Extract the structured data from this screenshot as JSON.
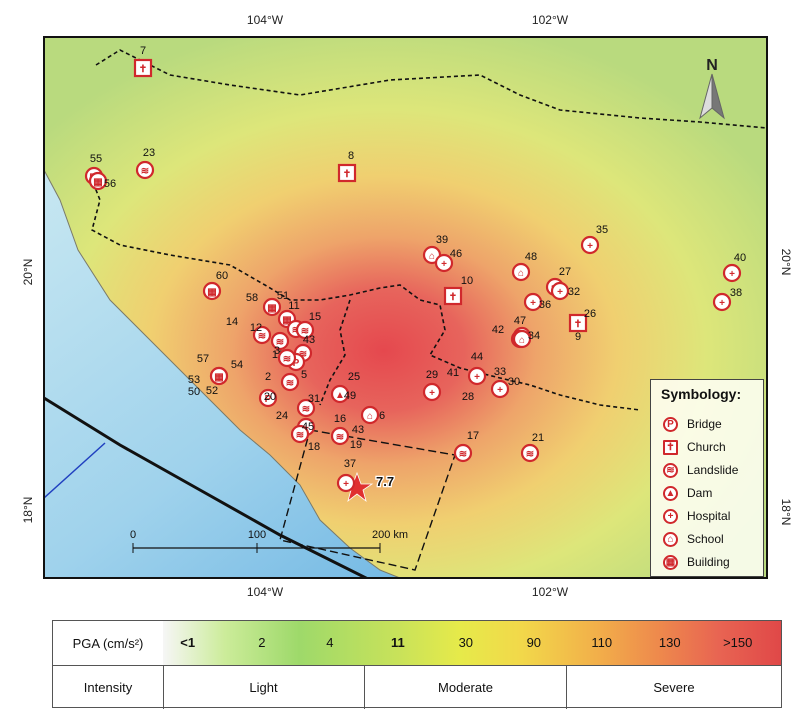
{
  "axes": {
    "top_lon_labels": [
      "104°W",
      "102°W"
    ],
    "bottom_lon_labels": [
      "104°W",
      "102°W"
    ],
    "left_lat_labels": [
      "20°N",
      "18°N"
    ],
    "right_lat_labels": [
      "20°N",
      "18°N"
    ]
  },
  "north_arrow": {
    "label": "N"
  },
  "scale_bar": {
    "labels": [
      "0",
      "100",
      "200 km"
    ]
  },
  "epicenter": {
    "magnitude_label": "7.7"
  },
  "symbology": {
    "title": "Symbology:",
    "items": [
      {
        "label": "Bridge",
        "glyph": "P",
        "icon": "bridge-icon"
      },
      {
        "label": "Church",
        "glyph": "✝",
        "icon": "church-icon"
      },
      {
        "label": "Landslide",
        "glyph": "≋",
        "icon": "landslide-icon"
      },
      {
        "label": "Dam",
        "glyph": "▲",
        "icon": "dam-icon"
      },
      {
        "label": "Hospital",
        "glyph": "+",
        "icon": "hospital-icon"
      },
      {
        "label": "School",
        "glyph": "⌂",
        "icon": "school-icon"
      },
      {
        "label": "Building",
        "glyph": "▦",
        "icon": "building-icon"
      }
    ]
  },
  "sites": [
    {
      "id": "7",
      "type": "church"
    },
    {
      "id": "8",
      "type": "church"
    },
    {
      "id": "10",
      "type": "church"
    },
    {
      "id": "26",
      "type": "church"
    },
    {
      "id": "55",
      "type": "building"
    },
    {
      "id": "56",
      "type": "building"
    },
    {
      "id": "23",
      "type": "landslide"
    },
    {
      "id": "60",
      "type": "building"
    },
    {
      "id": "39",
      "type": "school"
    },
    {
      "id": "46",
      "type": "hospital"
    },
    {
      "id": "48",
      "type": "school"
    },
    {
      "id": "27",
      "type": "landslide"
    },
    {
      "id": "32",
      "type": "hospital"
    },
    {
      "id": "36",
      "type": "hospital"
    },
    {
      "id": "35",
      "type": "hospital"
    },
    {
      "id": "40",
      "type": "hospital"
    },
    {
      "id": "38",
      "type": "hospital"
    },
    {
      "id": "47",
      "type": "school"
    },
    {
      "id": "42",
      "type": "school"
    },
    {
      "id": "34",
      "type": "school"
    },
    {
      "id": "9",
      "type": "label"
    },
    {
      "id": "58",
      "type": "building"
    },
    {
      "id": "51",
      "type": "building"
    },
    {
      "id": "11",
      "type": "landslide"
    },
    {
      "id": "15",
      "type": "landslide"
    },
    {
      "id": "14",
      "type": "landslide"
    },
    {
      "id": "12",
      "type": "landslide"
    },
    {
      "id": "43",
      "type": "landslide"
    },
    {
      "id": "13",
      "type": "bridge"
    },
    {
      "id": "3",
      "type": "landslide"
    },
    {
      "id": "57",
      "type": "building"
    },
    {
      "id": "54",
      "type": "building"
    },
    {
      "id": "53",
      "type": "label"
    },
    {
      "id": "50",
      "type": "label"
    },
    {
      "id": "52",
      "type": "label"
    },
    {
      "id": "2",
      "type": "bridge"
    },
    {
      "id": "5",
      "type": "landslide"
    },
    {
      "id": "20",
      "type": "label"
    },
    {
      "id": "25",
      "type": "dam"
    },
    {
      "id": "49",
      "type": "label"
    },
    {
      "id": "31",
      "type": "landslide"
    },
    {
      "id": "24",
      "type": "hospital"
    },
    {
      "id": "45",
      "type": "landslide"
    },
    {
      "id": "16",
      "type": "landslide"
    },
    {
      "id": "6",
      "type": "school"
    },
    {
      "id": "43",
      "type": "label"
    },
    {
      "id": "18",
      "type": "label"
    },
    {
      "id": "19",
      "type": "label"
    },
    {
      "id": "17",
      "type": "landslide"
    },
    {
      "id": "21",
      "type": "landslide"
    },
    {
      "id": "37",
      "type": "hospital"
    },
    {
      "id": "44",
      "type": "hospital"
    },
    {
      "id": "41",
      "type": "label"
    },
    {
      "id": "33",
      "type": "hospital"
    },
    {
      "id": "29",
      "type": "hospital"
    },
    {
      "id": "28",
      "type": "label"
    },
    {
      "id": "30",
      "type": "label"
    }
  ],
  "pga_legend": {
    "header": "PGA (cm/s²)",
    "values": [
      "<1",
      "2",
      "4",
      "11",
      "30",
      "90",
      "110",
      "130",
      ">150"
    ]
  },
  "intensity_legend": {
    "header": "Intensity",
    "classes": [
      "Light",
      "Moderate",
      "Severe"
    ]
  },
  "colors": {
    "marker_red": "#d0282c",
    "sea_light": "#bfe3ef",
    "sea_deep": "#59aee0",
    "land_low": "#cfe58a",
    "land_mid": "#f0c66a",
    "land_high": "#e0484c"
  }
}
